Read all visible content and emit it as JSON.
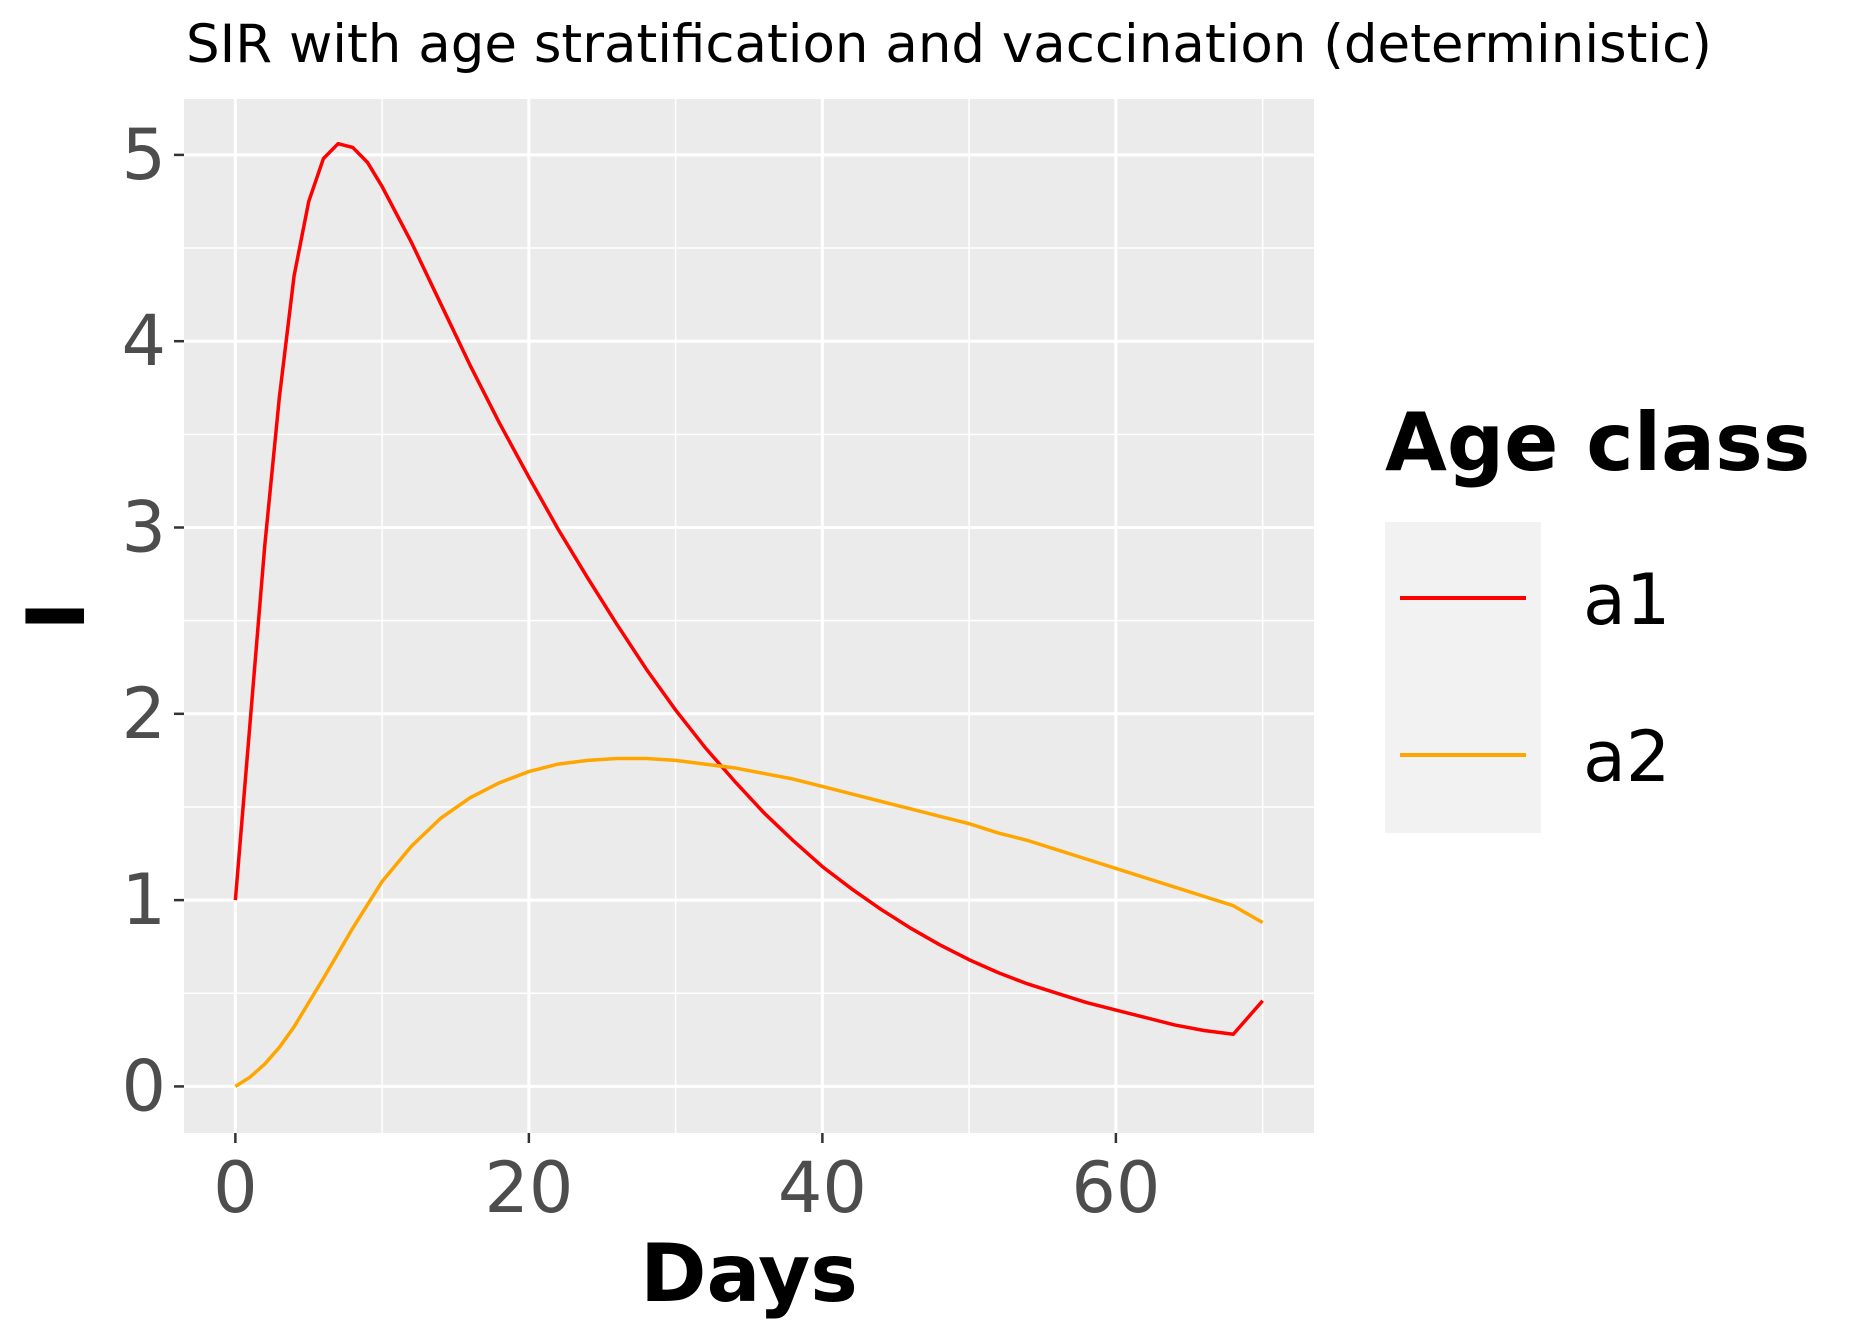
{
  "chart_data": {
    "type": "line",
    "title": "SIR with age stratification and vaccination (deterministic)",
    "xlabel": "Days",
    "ylabel": "I",
    "xlim": [
      -3.5,
      73.5
    ],
    "ylim": [
      -0.25,
      5.3
    ],
    "xticks": [
      0,
      20,
      40,
      60
    ],
    "xtick_labels": [
      "0",
      "20",
      "40",
      "60"
    ],
    "yticks": [
      0,
      1,
      2,
      3,
      4,
      5
    ],
    "ytick_labels": [
      "0",
      "1",
      "2",
      "3",
      "4",
      "5"
    ],
    "xminor": [
      10,
      30,
      50,
      70
    ],
    "yminor": [
      0.5,
      1.5,
      2.5,
      3.5,
      4.5
    ],
    "grid": true,
    "panel_background": "#ebebeb",
    "legend": {
      "title": "Age class",
      "placement": "right"
    },
    "series": [
      {
        "name": "a1",
        "color": "#ff0000",
        "x": [
          0,
          1,
          2,
          3,
          4,
          5,
          6,
          7,
          8,
          9,
          10,
          12,
          14,
          16,
          18,
          20,
          22,
          24,
          26,
          28,
          30,
          32,
          34,
          36,
          38,
          40,
          42,
          44,
          46,
          48,
          50,
          52,
          54,
          56,
          58,
          60,
          62,
          64,
          66,
          68,
          70
        ],
        "y": [
          1.0,
          1.95,
          2.9,
          3.7,
          4.35,
          4.75,
          4.98,
          5.06,
          5.04,
          4.96,
          4.83,
          4.53,
          4.2,
          3.87,
          3.56,
          3.27,
          2.99,
          2.73,
          2.48,
          2.24,
          2.02,
          1.82,
          1.64,
          1.47,
          1.32,
          1.18,
          1.06,
          0.95,
          0.85,
          0.76,
          0.68,
          0.61,
          0.55,
          0.5,
          0.45,
          0.41,
          0.37,
          0.33,
          0.3,
          0.28,
          0.46
        ]
      },
      {
        "name": "a2",
        "color": "#ffa500",
        "x": [
          0,
          1,
          2,
          3,
          4,
          5,
          6,
          8,
          10,
          12,
          14,
          16,
          18,
          20,
          22,
          24,
          26,
          28,
          30,
          32,
          34,
          36,
          38,
          40,
          42,
          44,
          46,
          48,
          50,
          52,
          54,
          56,
          58,
          60,
          62,
          64,
          66,
          68,
          70
        ],
        "y": [
          0.0,
          0.05,
          0.12,
          0.21,
          0.32,
          0.45,
          0.58,
          0.85,
          1.1,
          1.29,
          1.44,
          1.55,
          1.63,
          1.69,
          1.73,
          1.75,
          1.76,
          1.76,
          1.75,
          1.73,
          1.71,
          1.68,
          1.65,
          1.61,
          1.57,
          1.53,
          1.49,
          1.45,
          1.41,
          1.36,
          1.32,
          1.27,
          1.22,
          1.17,
          1.12,
          1.07,
          1.02,
          0.97,
          0.88
        ]
      }
    ]
  }
}
